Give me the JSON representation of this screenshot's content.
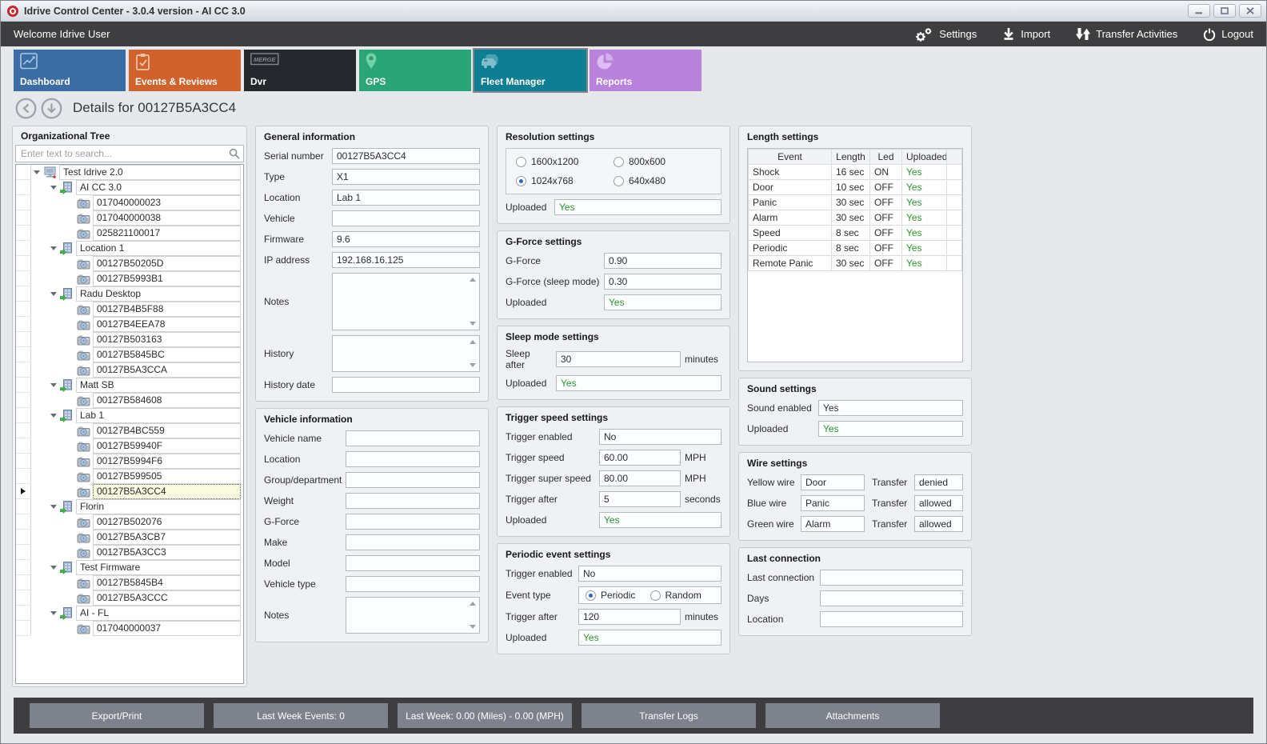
{
  "colors": {
    "accent_green": "#2a962a",
    "app_icon_red": "#c3262c",
    "dark_bar": "#3e3e40",
    "footer_button_gray": "#7e828d",
    "selected_tree_row_bg": "#fbfbe1"
  },
  "window": {
    "title": "Idrive Control Center - 3.0.4 version - AI CC 3.0",
    "controls": [
      {
        "name": "minimize",
        "icon": "minimize-icon"
      },
      {
        "name": "maximize",
        "icon": "maximize-icon"
      },
      {
        "name": "close",
        "icon": "close-icon"
      }
    ]
  },
  "topbar": {
    "welcome": "Welcome Idrive User",
    "actions": [
      {
        "label": "Settings",
        "icon": "gears-icon"
      },
      {
        "label": "Import",
        "icon": "import-icon"
      },
      {
        "label": "Transfer Activities",
        "icon": "transfer-arrows-icon"
      },
      {
        "label": "Logout",
        "icon": "power-icon"
      }
    ]
  },
  "tabs": [
    {
      "label": "Dashboard",
      "icon": "line-chart-icon",
      "color": "#3a6da4",
      "icon_color": "#a9c6e3",
      "selected": false
    },
    {
      "label": "Events & Reviews",
      "icon": "clipboard-icon",
      "color": "#d2622c",
      "icon_color": "#f0c5a9",
      "selected": false
    },
    {
      "label": "Dvr",
      "icon": "merge-box-icon",
      "color": "#25282d",
      "icon_color": "#80868e",
      "selected": false
    },
    {
      "label": "GPS",
      "icon": "map-pin-icon",
      "color": "#2aa578",
      "icon_color": "#6fd3a8",
      "selected": false
    },
    {
      "label": "Fleet Manager",
      "icon": "vehicles-icon",
      "color": "#0d7e94",
      "icon_color": "#7fbecb",
      "selected": true
    },
    {
      "label": "Reports",
      "icon": "pie-chart-icon",
      "color": "#b983dc",
      "icon_color": "#ddbdf3",
      "selected": false
    }
  ],
  "details": {
    "title": "Details for 00127B5A3CC4",
    "nav": [
      {
        "name": "back",
        "icon": "arrow-left-circle-icon"
      },
      {
        "name": "scroll-down",
        "icon": "arrow-down-circle-icon"
      }
    ]
  },
  "tree": {
    "title": "Organizational Tree",
    "search_placeholder": "Enter text to search...",
    "search_icon": "search-icon",
    "icons": {
      "root": "organization-icon",
      "group": "building-icon",
      "device": "camera-icon"
    },
    "nodes": [
      {
        "label": "Test Idrive 2.0",
        "depth": 0,
        "kind": "root",
        "selected": false
      },
      {
        "label": "AI CC 3.0",
        "depth": 1,
        "kind": "group",
        "selected": false
      },
      {
        "label": "017040000023",
        "depth": 2,
        "kind": "device",
        "selected": false
      },
      {
        "label": "017040000038",
        "depth": 2,
        "kind": "device",
        "selected": false
      },
      {
        "label": "025821100017",
        "depth": 2,
        "kind": "device",
        "selected": false
      },
      {
        "label": "Location 1",
        "depth": 1,
        "kind": "group",
        "selected": false
      },
      {
        "label": "00127B50205D",
        "depth": 2,
        "kind": "device",
        "selected": false
      },
      {
        "label": "00127B5993B1",
        "depth": 2,
        "kind": "device",
        "selected": false
      },
      {
        "label": "Radu Desktop",
        "depth": 1,
        "kind": "group",
        "selected": false
      },
      {
        "label": "00127B4B5F88",
        "depth": 2,
        "kind": "device",
        "selected": false
      },
      {
        "label": "00127B4EEA78",
        "depth": 2,
        "kind": "device",
        "selected": false
      },
      {
        "label": "00127B503163",
        "depth": 2,
        "kind": "device",
        "selected": false
      },
      {
        "label": "00127B5845BC",
        "depth": 2,
        "kind": "device",
        "selected": false
      },
      {
        "label": "00127B5A3CCA",
        "depth": 2,
        "kind": "device",
        "selected": false
      },
      {
        "label": "Matt SB",
        "depth": 1,
        "kind": "group",
        "selected": false
      },
      {
        "label": "00127B584608",
        "depth": 2,
        "kind": "device",
        "selected": false
      },
      {
        "label": "Lab 1",
        "depth": 1,
        "kind": "group",
        "selected": false
      },
      {
        "label": "00127B4BC559",
        "depth": 2,
        "kind": "device",
        "selected": false
      },
      {
        "label": "00127B59940F",
        "depth": 2,
        "kind": "device",
        "selected": false
      },
      {
        "label": "00127B5994F6",
        "depth": 2,
        "kind": "device",
        "selected": false
      },
      {
        "label": "00127B599505",
        "depth": 2,
        "kind": "device",
        "selected": false
      },
      {
        "label": "00127B5A3CC4",
        "depth": 2,
        "kind": "device",
        "selected": true
      },
      {
        "label": "Florin",
        "depth": 1,
        "kind": "group",
        "selected": false
      },
      {
        "label": "00127B502076",
        "depth": 2,
        "kind": "device",
        "selected": false
      },
      {
        "label": "00127B5A3CB7",
        "depth": 2,
        "kind": "device",
        "selected": false
      },
      {
        "label": "00127B5A3CC3",
        "depth": 2,
        "kind": "device",
        "selected": false
      },
      {
        "label": "Test Firmware",
        "depth": 1,
        "kind": "group",
        "selected": false
      },
      {
        "label": "00127B5845B4",
        "depth": 2,
        "kind": "device",
        "selected": false
      },
      {
        "label": "00127B5A3CCC",
        "depth": 2,
        "kind": "device",
        "selected": false
      },
      {
        "label": "AI - FL",
        "depth": 1,
        "kind": "group",
        "selected": false
      },
      {
        "label": "017040000037",
        "depth": 2,
        "kind": "device",
        "selected": false
      }
    ]
  },
  "general_info": {
    "title": "General information",
    "fields": [
      {
        "label": "Serial number",
        "value": "00127B5A3CC4"
      },
      {
        "label": "Type",
        "value": "X1"
      },
      {
        "label": "Location",
        "value": "Lab 1"
      },
      {
        "label": "Vehicle",
        "value": ""
      },
      {
        "label": "Firmware",
        "value": "9.6"
      },
      {
        "label": "IP address",
        "value": "192.168.16.125"
      },
      {
        "label": "Notes",
        "type": "textarea",
        "value": ""
      },
      {
        "label": "History",
        "type": "textarea",
        "value": ""
      },
      {
        "label": "History date",
        "value": ""
      }
    ]
  },
  "vehicle_info": {
    "title": "Vehicle information",
    "fields": [
      {
        "label": "Vehicle name",
        "value": ""
      },
      {
        "label": "Location",
        "value": ""
      },
      {
        "label": "Group/department",
        "value": ""
      },
      {
        "label": "Weight",
        "value": ""
      },
      {
        "label": "G-Force",
        "value": ""
      },
      {
        "label": "Make",
        "value": ""
      },
      {
        "label": "Model",
        "value": ""
      },
      {
        "label": "Vehicle type",
        "value": ""
      },
      {
        "label": "Notes",
        "type": "textarea",
        "value": ""
      }
    ]
  },
  "resolution": {
    "title": "Resolution settings",
    "options": [
      "1600x1200",
      "800x600",
      "1024x768",
      "640x480"
    ],
    "selected": "1024x768",
    "uploaded": {
      "label": "Uploaded",
      "value": "Yes"
    }
  },
  "gforce": {
    "title": "G-Force settings",
    "fields": [
      {
        "label": "G-Force",
        "value": "0.90"
      },
      {
        "label": "G-Force (sleep mode)",
        "value": "0.30"
      },
      {
        "label": "Uploaded",
        "value": "Yes",
        "green": true
      }
    ]
  },
  "sleep_mode": {
    "title": "Sleep mode settings",
    "fields": [
      {
        "label": "Sleep after",
        "value": "30",
        "unit": "minutes"
      },
      {
        "label": "Uploaded",
        "value": "Yes",
        "green": true
      }
    ]
  },
  "trigger_speed": {
    "title": "Trigger speed settings",
    "fields": [
      {
        "label": "Trigger enabled",
        "value": "No"
      },
      {
        "label": "Trigger speed",
        "value": "60.00",
        "unit": "MPH"
      },
      {
        "label": "Trigger super speed",
        "value": "80.00",
        "unit": "MPH"
      },
      {
        "label": "Trigger after",
        "value": "5",
        "unit": "seconds"
      },
      {
        "label": "Uploaded",
        "value": "Yes",
        "green": true
      }
    ]
  },
  "periodic_event": {
    "title": "Periodic event settings",
    "fields": [
      {
        "label": "Trigger enabled",
        "value": "No"
      },
      {
        "label": "Event type",
        "type": "radio",
        "options": [
          "Periodic",
          "Random"
        ],
        "selected": "Periodic"
      },
      {
        "label": "Trigger after",
        "value": "120",
        "unit": "minutes"
      },
      {
        "label": "Uploaded",
        "value": "Yes",
        "green": true
      }
    ]
  },
  "length_settings": {
    "title": "Length settings",
    "columns": [
      "Event",
      "Length",
      "Led",
      "Uploaded"
    ],
    "rows": [
      [
        "Shock",
        "16 sec",
        "ON",
        "Yes"
      ],
      [
        "Door",
        "10 sec",
        "OFF",
        "Yes"
      ],
      [
        "Panic",
        "30 sec",
        "OFF",
        "Yes"
      ],
      [
        "Alarm",
        "30 sec",
        "OFF",
        "Yes"
      ],
      [
        "Speed",
        "8 sec",
        "OFF",
        "Yes"
      ],
      [
        "Periodic",
        "8 sec",
        "OFF",
        "Yes"
      ],
      [
        "Remote Panic",
        "30 sec",
        "OFF",
        "Yes"
      ]
    ]
  },
  "sound": {
    "title": "Sound settings",
    "fields": [
      {
        "label": "Sound enabled",
        "value": "Yes"
      },
      {
        "label": "Uploaded",
        "value": "Yes",
        "green": true
      }
    ]
  },
  "wire": {
    "title": "Wire settings",
    "rows": [
      {
        "label": "Yellow wire",
        "value": "Door",
        "label2": "Transfer",
        "value2": "denied"
      },
      {
        "label": "Blue wire",
        "value": "Panic",
        "label2": "Transfer",
        "value2": "allowed"
      },
      {
        "label": "Green wire",
        "value": "Alarm",
        "label2": "Transfer",
        "value2": "allowed"
      }
    ]
  },
  "last_connection": {
    "title": "Last connection",
    "fields": [
      {
        "label": "Last connection",
        "value": ""
      },
      {
        "label": "Days",
        "value": ""
      },
      {
        "label": "Location",
        "value": ""
      }
    ]
  },
  "footer": {
    "buttons": [
      "Export/Print",
      "Last Week Events: 0",
      "Last Week: 0.00 (Miles) - 0.00 (MPH)",
      "Transfer Logs",
      "Attachments"
    ]
  }
}
